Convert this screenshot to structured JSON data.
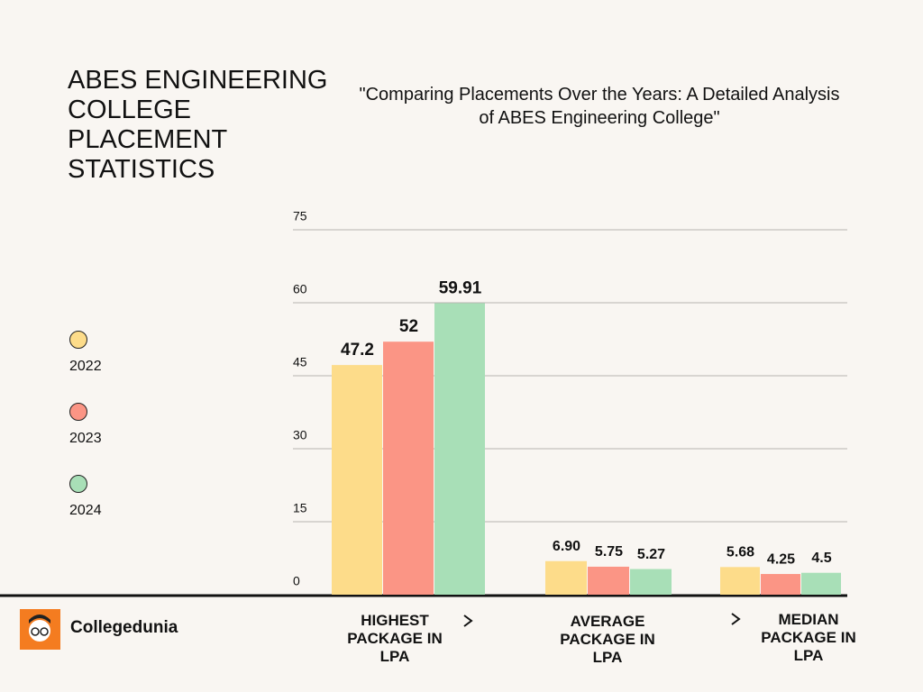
{
  "brand": "Collegedunia",
  "chart_data": {
    "type": "bar",
    "title": "ABES ENGINEERING COLLEGE PLACEMENT STATISTICS",
    "subtitle": "\"Comparing Placements Over the Years: A Detailed Analysis of ABES Engineering College\"",
    "categories": [
      "HIGHEST PACKAGE IN LPA",
      "AVERAGE PACKAGE IN LPA",
      "MEDIAN PACKAGE IN LPA"
    ],
    "series": [
      {
        "name": "2022",
        "color": "#fddc8a",
        "values": [
          47.2,
          6.9,
          5.68
        ],
        "value_labels": [
          "47.2",
          "6.90",
          "5.68"
        ]
      },
      {
        "name": "2023",
        "color": "#fb9585",
        "values": [
          52,
          5.75,
          4.25
        ]
      },
      {
        "name": "2024",
        "color": "#a8dfb7",
        "values": [
          59.91,
          5.27,
          4.5
        ]
      }
    ],
    "ylim": [
      0,
      75
    ],
    "yticks": [
      0,
      15,
      30,
      45,
      60,
      75
    ],
    "grid": true,
    "legend": "left"
  }
}
